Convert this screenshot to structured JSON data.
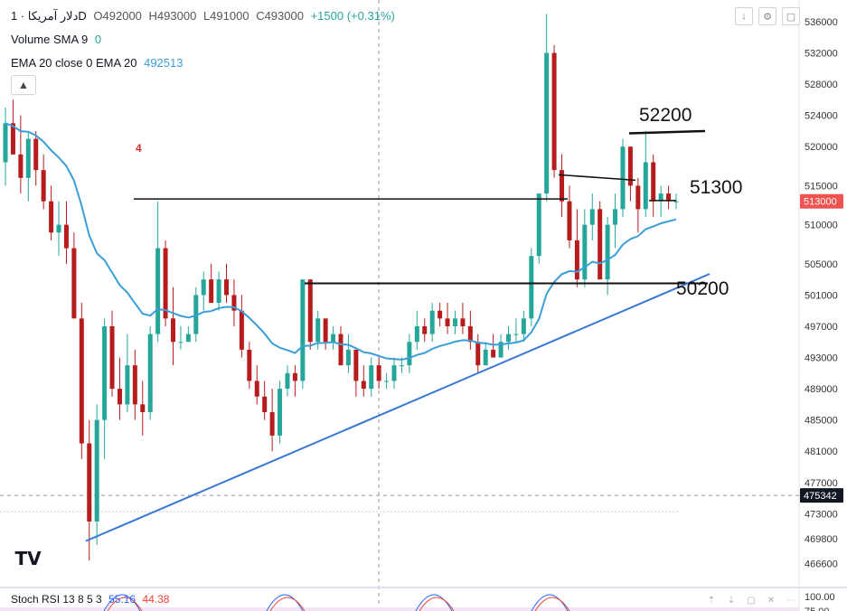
{
  "header": {
    "symbol": "دلار آمریکا · 1D",
    "open": "O492000",
    "high": "H493000",
    "low": "L491000",
    "close": "C493000",
    "change": "+1500 (+0.31%)",
    "volume_label": "Volume SMA 9",
    "volume_value": "0",
    "ema_label": "EMA 20 close 0 EMA 20",
    "ema_value": "492513"
  },
  "toolbar": {
    "collapse_icon": "chevron-up-icon",
    "buttons": [
      "arrow-down-icon",
      "settings-icon",
      "maximize-icon"
    ]
  },
  "colors": {
    "up": "#26a69a",
    "down": "#b71c1c",
    "ema": "#3a9fd8",
    "trendline": "#3a77d6",
    "price_badge": "#ef5350",
    "stoch_k": "#2962ff",
    "stoch_d": "#f44336",
    "stoch_band": "#f3e5f5"
  },
  "price_axis": {
    "ticks": [
      536000,
      532000,
      528000,
      524000,
      520000,
      515000,
      510000,
      505000,
      501000,
      497000,
      493000,
      489000,
      485000,
      481000,
      477000,
      473000,
      469800,
      466600
    ],
    "current_price_label": "513000",
    "dashed_level_label": "475342"
  },
  "stoch_panel": {
    "label": "Stoch RSI 13 8 5 3",
    "k_value": "55.16",
    "d_value": "44.38",
    "axis_label": "100.00",
    "axis_label_lower": "75.00"
  },
  "annotations": {
    "note_4": "4",
    "level_52200": "52200",
    "level_51300": "51300",
    "level_50200": "50200"
  },
  "logo_text": "TV",
  "chart_data": {
    "type": "candlestick",
    "title": "دلار آمریکا · 1D",
    "ylim": [
      464000,
      537500
    ],
    "indicators": [
      "Volume SMA 9",
      "EMA 20"
    ],
    "horizontal_levels": [
      {
        "label": "52200",
        "price": 522000
      },
      {
        "label": "51300",
        "price": 513000
      },
      {
        "label": "50200",
        "price": 502500
      },
      {
        "price": 515800
      }
    ],
    "trendline": {
      "from_price": 469500,
      "to_price": 503700
    },
    "candles": [
      {
        "o": 518,
        "h": 525,
        "l": 515,
        "c": 523
      },
      {
        "o": 523,
        "h": 526,
        "l": 519,
        "c": 519
      },
      {
        "o": 519,
        "h": 524,
        "l": 514,
        "c": 516
      },
      {
        "o": 516,
        "h": 522,
        "l": 513,
        "c": 521
      },
      {
        "o": 521,
        "h": 522,
        "l": 515,
        "c": 517
      },
      {
        "o": 517,
        "h": 519,
        "l": 512,
        "c": 513
      },
      {
        "o": 513,
        "h": 515,
        "l": 508,
        "c": 509
      },
      {
        "o": 509,
        "h": 513,
        "l": 506,
        "c": 510
      },
      {
        "o": 510,
        "h": 513,
        "l": 505,
        "c": 507
      },
      {
        "o": 507,
        "h": 509,
        "l": 498,
        "c": 498
      },
      {
        "o": 498,
        "h": 500,
        "l": 480,
        "c": 482
      },
      {
        "o": 482,
        "h": 485,
        "l": 467,
        "c": 472
      },
      {
        "o": 472,
        "h": 487,
        "l": 469,
        "c": 485
      },
      {
        "o": 485,
        "h": 498,
        "l": 480,
        "c": 497
      },
      {
        "o": 497,
        "h": 499,
        "l": 488,
        "c": 489
      },
      {
        "o": 489,
        "h": 493,
        "l": 485,
        "c": 487
      },
      {
        "o": 487,
        "h": 496,
        "l": 486,
        "c": 492
      },
      {
        "o": 492,
        "h": 494,
        "l": 485,
        "c": 487
      },
      {
        "o": 487,
        "h": 490,
        "l": 483,
        "c": 486
      },
      {
        "o": 486,
        "h": 497,
        "l": 485,
        "c": 496
      },
      {
        "o": 496,
        "h": 513,
        "l": 495,
        "c": 507
      },
      {
        "o": 507,
        "h": 508,
        "l": 497,
        "c": 498
      },
      {
        "o": 498,
        "h": 502,
        "l": 492,
        "c": 495
      },
      {
        "o": 495,
        "h": 497,
        "l": 494,
        "c": 495
      },
      {
        "o": 495,
        "h": 497,
        "l": 495,
        "c": 496
      },
      {
        "o": 496,
        "h": 502,
        "l": 495,
        "c": 501
      },
      {
        "o": 501,
        "h": 504,
        "l": 499,
        "c": 503
      },
      {
        "o": 503,
        "h": 505,
        "l": 500,
        "c": 500
      },
      {
        "o": 500,
        "h": 504,
        "l": 499,
        "c": 503
      },
      {
        "o": 503,
        "h": 505,
        "l": 500,
        "c": 501
      },
      {
        "o": 501,
        "h": 503,
        "l": 497,
        "c": 499
      },
      {
        "o": 499,
        "h": 501,
        "l": 493,
        "c": 494
      },
      {
        "o": 494,
        "h": 495,
        "l": 489,
        "c": 490
      },
      {
        "o": 490,
        "h": 492,
        "l": 487,
        "c": 488
      },
      {
        "o": 488,
        "h": 490,
        "l": 485,
        "c": 486
      },
      {
        "o": 486,
        "h": 489,
        "l": 481,
        "c": 483
      },
      {
        "o": 483,
        "h": 490,
        "l": 482,
        "c": 489
      },
      {
        "o": 489,
        "h": 492,
        "l": 488,
        "c": 491
      },
      {
        "o": 491,
        "h": 492,
        "l": 488,
        "c": 490
      },
      {
        "o": 490,
        "h": 503,
        "l": 489,
        "c": 503
      },
      {
        "o": 503,
        "h": 503,
        "l": 494,
        "c": 495
      },
      {
        "o": 495,
        "h": 499,
        "l": 494,
        "c": 498
      },
      {
        "o": 498,
        "h": 498,
        "l": 494,
        "c": 495
      },
      {
        "o": 495,
        "h": 497,
        "l": 494,
        "c": 496
      },
      {
        "o": 496,
        "h": 497,
        "l": 492,
        "c": 492
      },
      {
        "o": 492,
        "h": 496,
        "l": 491,
        "c": 494
      },
      {
        "o": 494,
        "h": 494,
        "l": 488,
        "c": 490
      },
      {
        "o": 490,
        "h": 492,
        "l": 488,
        "c": 489
      },
      {
        "o": 489,
        "h": 493,
        "l": 488,
        "c": 492
      },
      {
        "o": 492,
        "h": 493,
        "l": 489,
        "c": 490
      },
      {
        "o": 490,
        "h": 491,
        "l": 489,
        "c": 490
      },
      {
        "o": 490,
        "h": 493,
        "l": 489,
        "c": 492
      },
      {
        "o": 492,
        "h": 493,
        "l": 491,
        "c": 492
      },
      {
        "o": 492,
        "h": 496,
        "l": 491,
        "c": 495
      },
      {
        "o": 495,
        "h": 499,
        "l": 494,
        "c": 497
      },
      {
        "o": 497,
        "h": 498,
        "l": 495,
        "c": 496
      },
      {
        "o": 496,
        "h": 500,
        "l": 495,
        "c": 499
      },
      {
        "o": 499,
        "h": 500,
        "l": 497,
        "c": 498
      },
      {
        "o": 498,
        "h": 500,
        "l": 496,
        "c": 497
      },
      {
        "o": 497,
        "h": 499,
        "l": 496,
        "c": 498
      },
      {
        "o": 498,
        "h": 500,
        "l": 496,
        "c": 497
      },
      {
        "o": 497,
        "h": 499,
        "l": 494,
        "c": 495
      },
      {
        "o": 495,
        "h": 496,
        "l": 491,
        "c": 492
      },
      {
        "o": 492,
        "h": 495,
        "l": 492,
        "c": 494
      },
      {
        "o": 494,
        "h": 496,
        "l": 493,
        "c": 493
      },
      {
        "o": 493,
        "h": 496,
        "l": 493,
        "c": 495
      },
      {
        "o": 495,
        "h": 497,
        "l": 494,
        "c": 496
      },
      {
        "o": 496,
        "h": 498,
        "l": 495,
        "c": 496
      },
      {
        "o": 496,
        "h": 499,
        "l": 495,
        "c": 498
      },
      {
        "o": 498,
        "h": 507,
        "l": 497,
        "c": 506
      },
      {
        "o": 506,
        "h": 514,
        "l": 505,
        "c": 514
      },
      {
        "o": 514,
        "h": 537,
        "l": 513,
        "c": 532
      },
      {
        "o": 532,
        "h": 533,
        "l": 516,
        "c": 517
      },
      {
        "o": 517,
        "h": 519,
        "l": 511,
        "c": 513
      },
      {
        "o": 513,
        "h": 515,
        "l": 507,
        "c": 508
      },
      {
        "o": 508,
        "h": 512,
        "l": 502,
        "c": 503
      },
      {
        "o": 503,
        "h": 512,
        "l": 502,
        "c": 510
      },
      {
        "o": 510,
        "h": 514,
        "l": 508,
        "c": 512
      },
      {
        "o": 512,
        "h": 513,
        "l": 503,
        "c": 503
      },
      {
        "o": 503,
        "h": 511,
        "l": 501,
        "c": 510
      },
      {
        "o": 510,
        "h": 514,
        "l": 507,
        "c": 512
      },
      {
        "o": 512,
        "h": 521,
        "l": 511,
        "c": 520
      },
      {
        "o": 520,
        "h": 520,
        "l": 513,
        "c": 515
      },
      {
        "o": 515,
        "h": 516,
        "l": 509,
        "c": 512
      },
      {
        "o": 512,
        "h": 522,
        "l": 511,
        "c": 518
      },
      {
        "o": 518,
        "h": 519,
        "l": 511,
        "c": 513
      },
      {
        "o": 513,
        "h": 515,
        "l": 511,
        "c": 514
      },
      {
        "o": 514,
        "h": 515,
        "l": 512,
        "c": 513
      },
      {
        "o": 513,
        "h": 514,
        "l": 512,
        "c": 513
      }
    ]
  }
}
